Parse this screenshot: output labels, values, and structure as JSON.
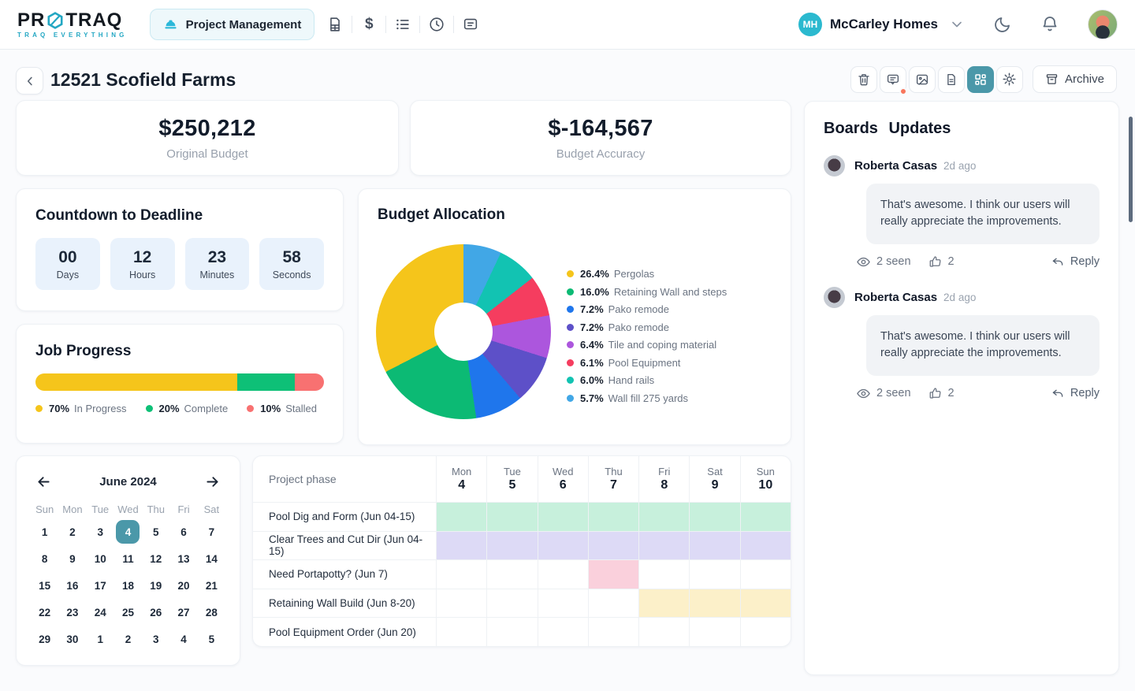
{
  "navbar": {
    "logo": {
      "pre": "PR",
      "post": "TRAQ",
      "tagline": "TRAQ EVERYTHING",
      "accent_color": "#23a7c3"
    },
    "active_tab": "Project Management",
    "nav_icon_names": [
      "invoice-icon",
      "dollar-icon",
      "tasks-list-icon",
      "clock-icon",
      "chat-icon"
    ],
    "dollar_glyph": "$",
    "right_icon_names": [
      "moon-icon",
      "bell-icon"
    ],
    "company": {
      "initials": "MH",
      "name": "McCarley Homes",
      "badge_color": "#2bb9cf"
    }
  },
  "header": {
    "title": "12521 Scofield Farms",
    "toolbar_icon_names": [
      "trash-icon",
      "comments-icon",
      "image-icon",
      "document-icon",
      "dashboard-icon",
      "settings-icon"
    ],
    "active_tool": "dashboard",
    "active_tool_color": "#4b98a9",
    "archive_label": "Archive",
    "comments_notification_dot_color": "#f8765c"
  },
  "stats": [
    {
      "value": "$250,212",
      "label": "Original Budget"
    },
    {
      "value": "$-164,567",
      "label": "Budget Accuracy"
    }
  ],
  "countdown": {
    "title": "Countdown to Deadline",
    "units": [
      {
        "value": "00",
        "label": "Days"
      },
      {
        "value": "12",
        "label": "Hours"
      },
      {
        "value": "23",
        "label": "Minutes"
      },
      {
        "value": "58",
        "label": "Seconds"
      }
    ]
  },
  "chart_data": [
    {
      "type": "pie",
      "donut": true,
      "title": "Budget Allocation",
      "legend_position": "right",
      "draw_order": "smallest-first-clockwise-from-top",
      "slices": [
        {
          "pct": 26.4,
          "pct_label": "26.4%",
          "label": "Pergolas",
          "color": "#f5c51b"
        },
        {
          "pct": 16.0,
          "pct_label": "16.0%",
          "label": "Retaining Wall and steps",
          "color": "#0cba74"
        },
        {
          "pct": 7.2,
          "pct_label": "7.2%",
          "label": "Pako remode",
          "color": "#1f76ec"
        },
        {
          "pct": 7.2,
          "pct_label": "7.2%",
          "label": "Pako remode",
          "color": "#5d50c8"
        },
        {
          "pct": 6.4,
          "pct_label": "6.4%",
          "label": "Tile and coping material",
          "color": "#ac56dd"
        },
        {
          "pct": 6.1,
          "pct_label": "6.1%",
          "label": "Pool Equipment",
          "color": "#f53d5f"
        },
        {
          "pct": 6.0,
          "pct_label": "6.0%",
          "label": "Hand rails",
          "color": "#12c3b2"
        },
        {
          "pct": 5.7,
          "pct_label": "5.7%",
          "label": "Wall fill 275 yards",
          "color": "#41a7e6"
        }
      ]
    },
    {
      "type": "bar",
      "title": "Job Progress",
      "segments": [
        {
          "pct": 70,
          "pct_label": "70%",
          "label": "In Progress",
          "color": "#f5c51b"
        },
        {
          "pct": 20,
          "pct_label": "20%",
          "label": "Complete",
          "color": "#0ec077"
        },
        {
          "pct": 10,
          "pct_label": "10%",
          "label": "Stalled",
          "color": "#f87171"
        }
      ]
    }
  ],
  "calendar": {
    "month": "June 2024",
    "weekdays": [
      "Sun",
      "Mon",
      "Tue",
      "Wed",
      "Thu",
      "Fri",
      "Sat"
    ],
    "days": [
      "1",
      "2",
      "3",
      "4",
      "5",
      "6",
      "7",
      "8",
      "9",
      "10",
      "11",
      "12",
      "13",
      "14",
      "15",
      "16",
      "17",
      "18",
      "19",
      "20",
      "21",
      "22",
      "23",
      "24",
      "25",
      "26",
      "27",
      "28",
      "29",
      "30",
      "1",
      "2",
      "3",
      "4",
      "5"
    ],
    "selected_index": 3,
    "selected_color": "#4b98a9"
  },
  "gantt": {
    "corner_label": "Project phase",
    "columns": [
      {
        "dow": "Mon",
        "date": "4"
      },
      {
        "dow": "Tue",
        "date": "5"
      },
      {
        "dow": "Wed",
        "date": "6"
      },
      {
        "dow": "Thu",
        "date": "7"
      },
      {
        "dow": "Fri",
        "date": "8"
      },
      {
        "dow": "Sat",
        "date": "9"
      },
      {
        "dow": "Sun",
        "date": "10"
      }
    ],
    "rows": [
      {
        "label": "Pool Dig and Form (Jun 04-15)",
        "fill_color": "#c7f0dc",
        "cells": [
          1,
          1,
          1,
          1,
          1,
          1,
          1
        ]
      },
      {
        "label": "Clear Trees and Cut Dir (Jun 04-15)",
        "fill_color": "#dddaf6",
        "cells": [
          1,
          1,
          1,
          1,
          1,
          1,
          1
        ]
      },
      {
        "label": "Need Portapotty? (Jun 7)",
        "fill_color": "#fad0dc",
        "cells": [
          0,
          0,
          0,
          1,
          0,
          0,
          0
        ]
      },
      {
        "label": "Retaining Wall Build (Jun 8-20)",
        "fill_color": "#fcf0c9",
        "cells": [
          0,
          0,
          0,
          0,
          1,
          1,
          1
        ]
      },
      {
        "label": "Pool Equipment Order (Jun 20)",
        "fill_color": "",
        "cells": [
          0,
          0,
          0,
          0,
          0,
          0,
          0
        ]
      }
    ]
  },
  "boards": {
    "title": "Boards Updates",
    "comments": [
      {
        "name": "Roberta Casas",
        "time": "2d ago",
        "text": "That's awesome. I think our users will really appreciate the improvements.",
        "seen": "2 seen",
        "likes": "2",
        "reply_label": "Reply"
      },
      {
        "name": "Roberta Casas",
        "time": "2d ago",
        "text": "That's awesome. I think our users will really appreciate the improvements.",
        "seen": "2 seen",
        "likes": "2",
        "reply_label": "Reply"
      }
    ]
  }
}
